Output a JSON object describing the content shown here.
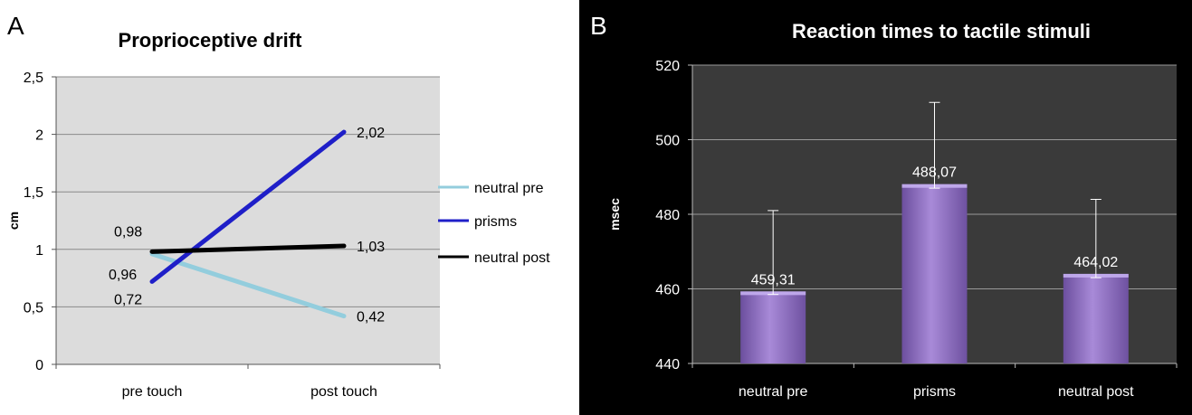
{
  "colors": {
    "neutral_pre": "#93cddd",
    "prisms": "#1f1fc8",
    "neutral_post": "#000000",
    "bar": "#8e6cc4",
    "panel_b_bg": "#000000",
    "panel_b_plot": "#3a3a3a",
    "plot_a_bg": "#dcdcdc"
  },
  "chart_data": [
    {
      "panel": "A",
      "type": "line",
      "title": "Proprioceptive drift",
      "xlabel": "",
      "ylabel": "cm",
      "categories": [
        "pre touch",
        "post touch"
      ],
      "ylim": [
        0,
        2.5
      ],
      "yticks": [
        "0",
        "0,5",
        "1",
        "1,5",
        "2",
        "2,5"
      ],
      "grid": true,
      "legend": "right",
      "series": [
        {
          "name": "neutral pre",
          "values": [
            0.96,
            0.42
          ],
          "labels": [
            "0,96",
            "0,42"
          ]
        },
        {
          "name": "prisms",
          "values": [
            0.72,
            2.02
          ],
          "labels": [
            "0,72",
            "2,02"
          ]
        },
        {
          "name": "neutral post",
          "values": [
            0.98,
            1.03
          ],
          "labels": [
            "0,98",
            "1,03"
          ]
        }
      ]
    },
    {
      "panel": "B",
      "type": "bar",
      "title": "Reaction times to tactile stimuli",
      "xlabel": "",
      "ylabel": "msec",
      "categories": [
        "neutral pre",
        "prisms",
        "neutral post"
      ],
      "values": [
        459.31,
        488.07,
        464.02
      ],
      "labels": [
        "459,31",
        "488,07",
        "464,02"
      ],
      "error_upper": [
        481,
        510,
        484
      ],
      "error_lower": [
        458.5,
        487,
        463
      ],
      "ylim": [
        440,
        520
      ],
      "yticks": [
        "440",
        "460",
        "480",
        "500",
        "520"
      ],
      "grid": true
    }
  ]
}
